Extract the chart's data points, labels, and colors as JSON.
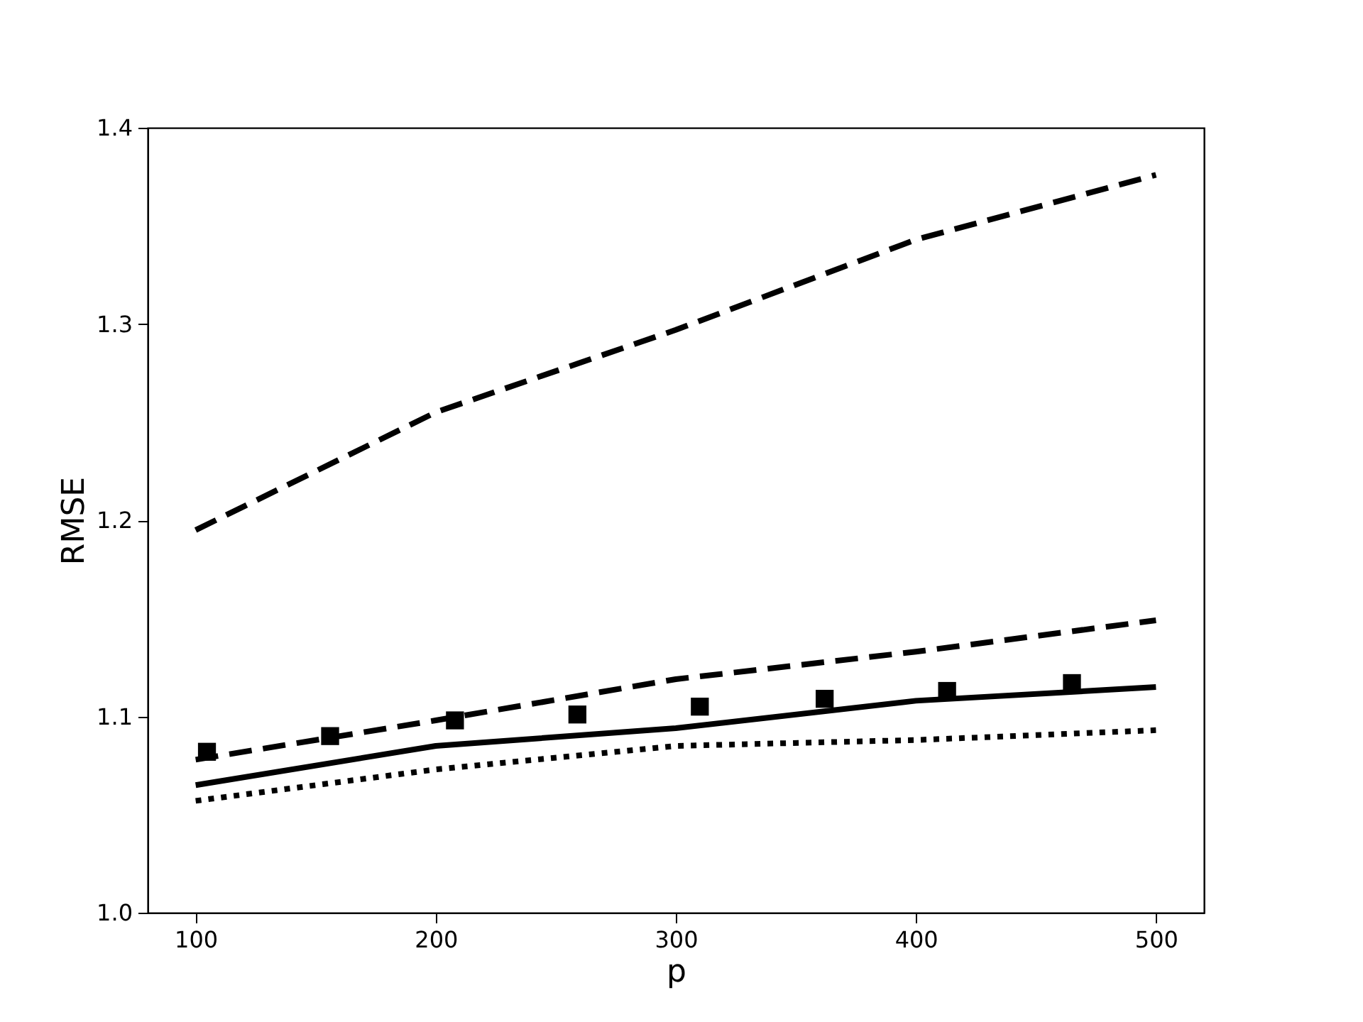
{
  "chart_data": {
    "type": "line",
    "xlabel": "p",
    "ylabel": "RMSE",
    "xlim": [
      80,
      520
    ],
    "ylim": [
      1.0,
      1.4
    ],
    "xticks": [
      100,
      200,
      300,
      400,
      500
    ],
    "yticks": [
      {
        "value": 1.0,
        "label": "1.0"
      },
      {
        "value": 1.1,
        "label": "1.1"
      },
      {
        "value": 1.2,
        "label": "1.2"
      },
      {
        "value": 1.3,
        "label": "1.3"
      },
      {
        "value": 1.4,
        "label": "1.4"
      }
    ],
    "grid": false,
    "series": [
      {
        "line_style": "dashed",
        "color": "#000000",
        "x": [
          100,
          200,
          300,
          400,
          500
        ],
        "values": [
          1.195,
          1.255,
          1.297,
          1.343,
          1.376
        ]
      },
      {
        "line_style": "dashed",
        "color": "#000000",
        "x": [
          100,
          200,
          300,
          400,
          500
        ],
        "values": [
          1.078,
          1.098,
          1.119,
          1.133,
          1.149
        ]
      },
      {
        "line_style": "solid",
        "color": "#000000",
        "x": [
          100,
          200,
          300,
          400,
          500
        ],
        "values": [
          1.065,
          1.085,
          1.094,
          1.108,
          1.115
        ]
      },
      {
        "line_style": "dotted",
        "color": "#000000",
        "x": [
          100,
          200,
          300,
          400,
          500
        ],
        "values": [
          1.057,
          1.073,
          1.085,
          1.088,
          1.093
        ]
      },
      {
        "type": "scatter",
        "marker": "square",
        "color": "#000000",
        "x": [
          104.7,
          156,
          208,
          259,
          310,
          362,
          413,
          465
        ],
        "values": [
          1.082,
          1.09,
          1.098,
          1.101,
          1.105,
          1.109,
          1.113,
          1.117
        ]
      }
    ]
  }
}
